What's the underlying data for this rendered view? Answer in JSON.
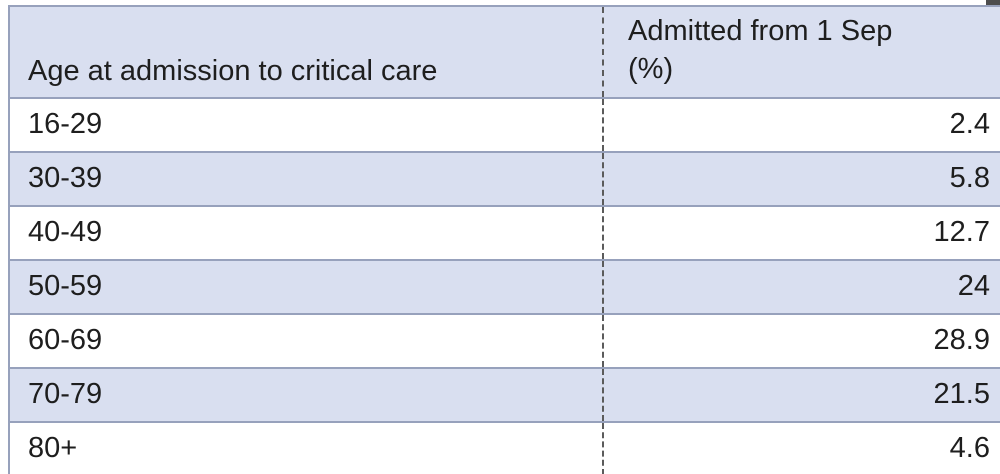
{
  "table": {
    "header": {
      "col1": "Age at admission to critical care",
      "col2": "Admitted from 1 Sep (%)"
    },
    "rows": [
      {
        "age": "16-29",
        "pct": "2.4"
      },
      {
        "age": "30-39",
        "pct": "5.8"
      },
      {
        "age": "40-49",
        "pct": "12.7"
      },
      {
        "age": "50-59",
        "pct": "24"
      },
      {
        "age": "60-69",
        "pct": "28.9"
      },
      {
        "age": "70-79",
        "pct": "21.5"
      },
      {
        "age": "80+",
        "pct": "4.6"
      }
    ],
    "colors": {
      "page_bg": "#ffffff",
      "stripe": "#d9dff0",
      "grid": "#97a1bc",
      "dash": "#5b5b5b",
      "text": "#1e1e1e"
    }
  },
  "chart_data": {
    "type": "table",
    "columns": [
      "Age at admission to critical care",
      "Admitted from 1 Sep (%)"
    ],
    "rows": [
      [
        "16-29",
        2.4
      ],
      [
        "30-39",
        5.8
      ],
      [
        "40-49",
        12.7
      ],
      [
        "50-59",
        24
      ],
      [
        "60-69",
        28.9
      ],
      [
        "70-79",
        21.5
      ],
      [
        "80+",
        4.6
      ]
    ]
  }
}
